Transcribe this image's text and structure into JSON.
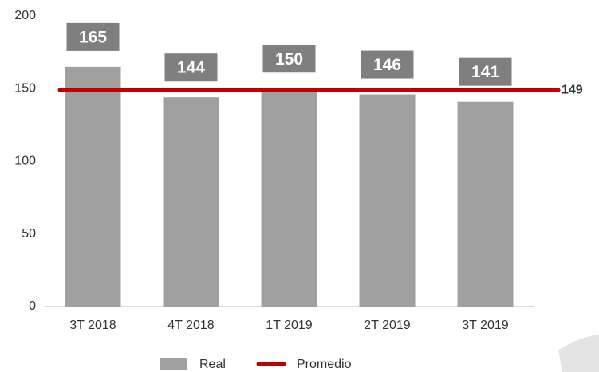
{
  "chart_data": {
    "type": "bar",
    "categories": [
      "3T 2018",
      "4T 2018",
      "1T 2019",
      "2T 2019",
      "3T 2019"
    ],
    "series": [
      {
        "name": "Real",
        "color": "#a0a0a0",
        "values": [
          165,
          144,
          150,
          146,
          141
        ]
      },
      {
        "name": "Promedio",
        "color": "#c00000",
        "value": 149
      }
    ],
    "ylim": [
      0,
      200
    ],
    "yticks": [
      0,
      50,
      100,
      150,
      200
    ],
    "grid": false,
    "legend": "bottom"
  }
}
